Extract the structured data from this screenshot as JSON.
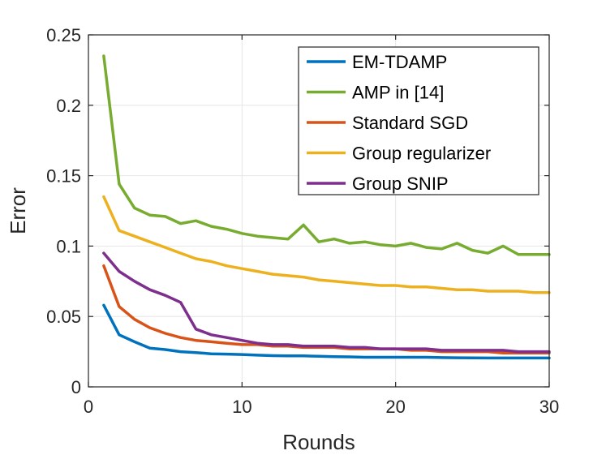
{
  "chart_data": {
    "type": "line",
    "title": "",
    "xlabel": "Rounds",
    "ylabel": "Error",
    "xlim": [
      0,
      30
    ],
    "ylim": [
      0,
      0.25
    ],
    "xticks": [
      0,
      10,
      20,
      30
    ],
    "xtick_labels": [
      "0",
      "10",
      "20",
      "30"
    ],
    "yticks": [
      0,
      0.05,
      0.1,
      0.15,
      0.2,
      0.25
    ],
    "ytick_labels": [
      "0",
      "0.05",
      "0.1",
      "0.15",
      "0.2",
      "0.25"
    ],
    "grid": true,
    "legend_position": "top-right",
    "x": [
      1,
      2,
      3,
      4,
      5,
      6,
      7,
      8,
      9,
      10,
      11,
      12,
      13,
      14,
      15,
      16,
      17,
      18,
      19,
      20,
      21,
      22,
      23,
      24,
      25,
      26,
      27,
      28,
      29,
      30
    ],
    "series": [
      {
        "name": "EM-TDAMP",
        "color": "#0072BD",
        "values": [
          0.058,
          0.037,
          0.032,
          0.0275,
          0.0265,
          0.025,
          0.0243,
          0.0235,
          0.0233,
          0.023,
          0.0225,
          0.0222,
          0.022,
          0.022,
          0.0218,
          0.0215,
          0.0213,
          0.021,
          0.021,
          0.021,
          0.021,
          0.021,
          0.0208,
          0.0207,
          0.0206,
          0.0205,
          0.0205,
          0.0205,
          0.0205,
          0.0205
        ]
      },
      {
        "name": "AMP in [14]",
        "color": "#77AC30",
        "values": [
          0.235,
          0.144,
          0.127,
          0.122,
          0.121,
          0.116,
          0.118,
          0.114,
          0.112,
          0.109,
          0.107,
          0.106,
          0.105,
          0.115,
          0.103,
          0.105,
          0.102,
          0.103,
          0.101,
          0.1,
          0.102,
          0.099,
          0.098,
          0.102,
          0.097,
          0.095,
          0.1,
          0.094,
          0.094,
          0.094
        ]
      },
      {
        "name": "Standard SGD",
        "color": "#D95319",
        "values": [
          0.086,
          0.057,
          0.048,
          0.042,
          0.038,
          0.035,
          0.033,
          0.032,
          0.031,
          0.03,
          0.03,
          0.029,
          0.029,
          0.028,
          0.028,
          0.028,
          0.027,
          0.027,
          0.027,
          0.027,
          0.026,
          0.026,
          0.025,
          0.025,
          0.025,
          0.025,
          0.024,
          0.024,
          0.024,
          0.024
        ]
      },
      {
        "name": "Group regularizer",
        "color": "#EDB120",
        "values": [
          0.135,
          0.111,
          0.107,
          0.103,
          0.099,
          0.095,
          0.091,
          0.089,
          0.086,
          0.084,
          0.082,
          0.08,
          0.079,
          0.078,
          0.076,
          0.075,
          0.074,
          0.073,
          0.072,
          0.072,
          0.071,
          0.071,
          0.07,
          0.069,
          0.069,
          0.068,
          0.068,
          0.068,
          0.067,
          0.067
        ]
      },
      {
        "name": "Group SNIP",
        "color": "#7E2F8E",
        "values": [
          0.095,
          0.082,
          0.075,
          0.069,
          0.065,
          0.06,
          0.041,
          0.037,
          0.035,
          0.033,
          0.031,
          0.03,
          0.03,
          0.029,
          0.029,
          0.029,
          0.028,
          0.028,
          0.027,
          0.027,
          0.027,
          0.027,
          0.026,
          0.026,
          0.026,
          0.026,
          0.026,
          0.025,
          0.025,
          0.025
        ]
      }
    ]
  }
}
